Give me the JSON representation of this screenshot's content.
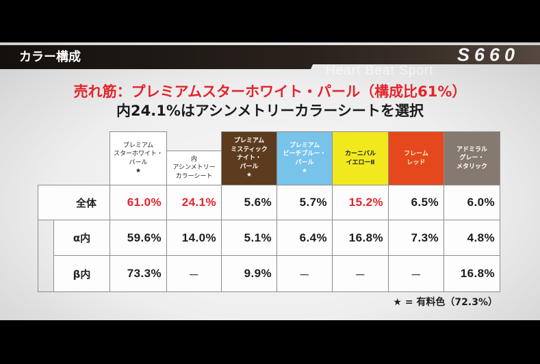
{
  "header": {
    "title": "カラー構成",
    "logo": "S660",
    "watermark": "Heart Beat Sport"
  },
  "headline": {
    "line1": "売れ筋：プレミアムスターホワイト・パール（構成比61%）",
    "line2": "内24.1%はアシンメトリーカラーシートを選択",
    "line1_color": "#e3242b"
  },
  "table": {
    "columns": [
      {
        "lines": [
          "プレミアム",
          "スターホワイト・",
          "パール",
          "★"
        ],
        "color": "#ffffff",
        "text_color": "#1e1e1e"
      },
      {
        "lines": [
          "内",
          "アシンメトリー",
          "カラーシート"
        ],
        "color": "#ffffff",
        "text_color": "#1e1e1e"
      },
      {
        "lines": [
          "プレミアム",
          "ミスティック",
          "ナイト・",
          "パール",
          "★"
        ],
        "color": "#5c3b1e",
        "text_color": "#ffffff"
      },
      {
        "lines": [
          "プレミアム",
          "ビーチブルー・",
          "パール",
          "★"
        ],
        "color": "#78c3ea",
        "text_color": "#ffffff"
      },
      {
        "lines": [
          "カーニバル",
          "イエローⅡ"
        ],
        "color": "#f1e91e",
        "text_color": "#222222"
      },
      {
        "lines": [
          "フレーム",
          "レッド"
        ],
        "color": "#e5481c",
        "text_color": "#fff2c4"
      },
      {
        "lines": [
          "アドミラル",
          "グレー・",
          "メタリック"
        ],
        "color": "#867a70",
        "text_color": "#ffffff"
      }
    ],
    "rows": [
      {
        "label": "全体",
        "values": [
          "61.0%",
          "24.1%",
          "5.6%",
          "5.7%",
          "15.2%",
          "6.5%",
          "6.0%"
        ]
      },
      {
        "label": "α内",
        "values": [
          "59.6%",
          "14.0%",
          "5.1%",
          "6.4%",
          "16.8%",
          "7.3%",
          "4.8%"
        ]
      },
      {
        "label": "β内",
        "values": [
          "73.3%",
          "－",
          "9.9%",
          "－",
          "－",
          "－",
          "16.8%"
        ]
      }
    ],
    "highlight_color": "#e3242b"
  },
  "footnote": "★ = 有料色（72.3%）"
}
